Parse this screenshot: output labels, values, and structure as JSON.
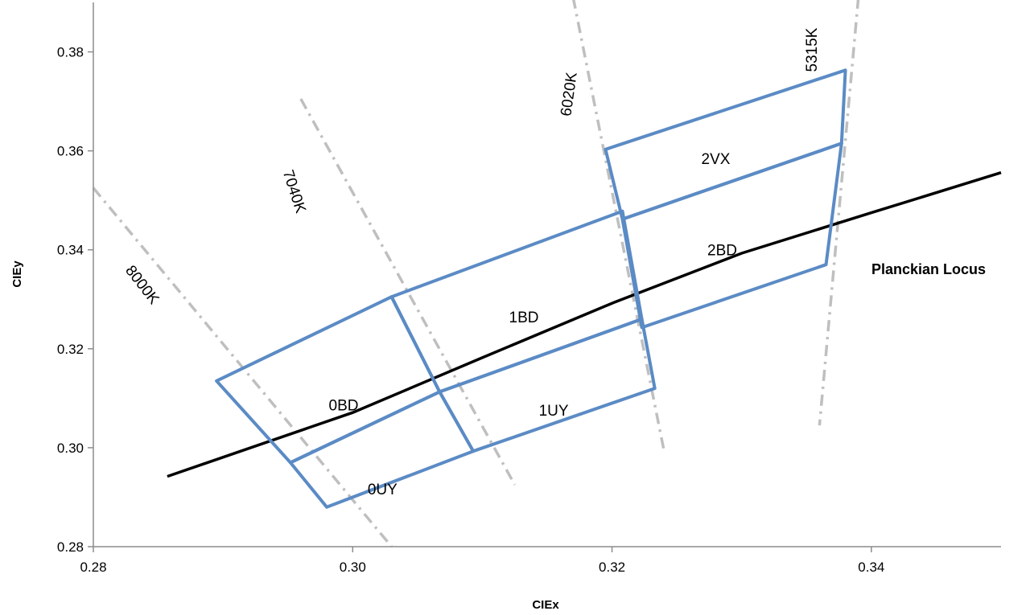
{
  "chart_data": {
    "type": "line",
    "xlabel": "CIEx",
    "ylabel": "CIEy",
    "xlim": [
      0.28,
      0.35
    ],
    "ylim": [
      0.28,
      0.39
    ],
    "x_ticks": [
      "0.28",
      "0.30",
      "0.32",
      "0.34"
    ],
    "y_ticks": [
      "0.28",
      "0.30",
      "0.32",
      "0.34",
      "0.36",
      "0.38"
    ],
    "grid": false,
    "legend": "none",
    "colors": {
      "bins": "#5b8bc5",
      "locus": "#000000",
      "isotherm": "#bfbfbf"
    },
    "planckian_locus": {
      "label": "Planckian Locus",
      "points": [
        [
          0.2857,
          0.2942
        ],
        [
          0.3,
          0.3071
        ],
        [
          0.31,
          0.3182
        ],
        [
          0.32,
          0.3292
        ],
        [
          0.33,
          0.3393
        ],
        [
          0.34,
          0.3475
        ],
        [
          0.35,
          0.3556
        ]
      ]
    },
    "isotherms": [
      {
        "label": "8000K",
        "points": [
          [
            0.28,
            0.3525
          ],
          [
            0.303,
            0.28
          ]
        ]
      },
      {
        "label": "7040K",
        "points": [
          [
            0.296,
            0.3705
          ],
          [
            0.3125,
            0.2925
          ]
        ]
      },
      {
        "label": "6020K",
        "points": [
          [
            0.317,
            0.391
          ],
          [
            0.324,
            0.2995
          ]
        ]
      },
      {
        "label": "5315K",
        "points": [
          [
            0.339,
            0.391
          ],
          [
            0.336,
            0.3045
          ]
        ]
      }
    ],
    "bins": [
      {
        "label": "0BD",
        "label_at": [
          0.2993,
          0.3087
        ],
        "corners": [
          [
            0.2895,
            0.3135
          ],
          [
            0.303,
            0.3305
          ],
          [
            0.3067,
            0.3113
          ],
          [
            0.2952,
            0.297
          ]
        ]
      },
      {
        "label": "0UY",
        "label_at": [
          0.3023,
          0.2917
        ],
        "corners": [
          [
            0.2952,
            0.297
          ],
          [
            0.3067,
            0.3113
          ],
          [
            0.3093,
            0.2993
          ],
          [
            0.298,
            0.288
          ]
        ]
      },
      {
        "label": "1BD",
        "label_at": [
          0.3132,
          0.3265
        ],
        "corners": [
          [
            0.303,
            0.3305
          ],
          [
            0.3208,
            0.3478
          ],
          [
            0.3223,
            0.326
          ],
          [
            0.3067,
            0.3113
          ]
        ]
      },
      {
        "label": "1UY",
        "label_at": [
          0.3155,
          0.3076
        ],
        "corners": [
          [
            0.3067,
            0.3113
          ],
          [
            0.3223,
            0.326
          ],
          [
            0.3233,
            0.312
          ],
          [
            0.3093,
            0.2993
          ]
        ]
      },
      {
        "label": "2VX",
        "label_at": [
          0.328,
          0.3585
        ],
        "corners": [
          [
            0.3195,
            0.3603
          ],
          [
            0.338,
            0.3763
          ],
          [
            0.3377,
            0.3615
          ],
          [
            0.3208,
            0.3462
          ]
        ]
      },
      {
        "label": "2BD",
        "label_at": [
          0.3285,
          0.34
        ],
        "corners": [
          [
            0.3208,
            0.3462
          ],
          [
            0.3377,
            0.3615
          ],
          [
            0.3365,
            0.337
          ],
          [
            0.3223,
            0.3243
          ]
        ]
      }
    ]
  }
}
